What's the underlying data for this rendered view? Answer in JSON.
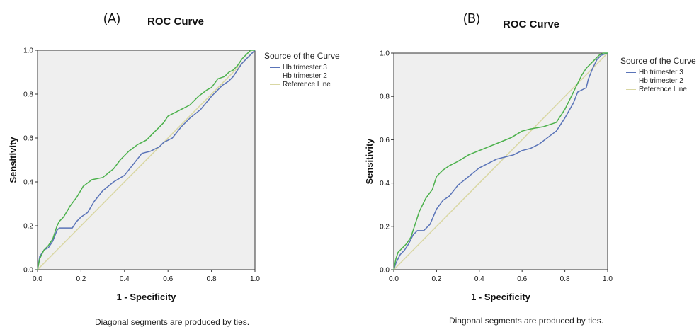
{
  "panels": [
    {
      "panel_label": "(A)",
      "title": "ROC Curve",
      "xlabel": "1 - Specificity",
      "ylabel": "Sensitivity",
      "footnote": "Diagonal segments are produced by ties.",
      "legend": {
        "title": "Source of the Curve",
        "items": [
          "Hb trimester 3",
          "Hb trimester 2",
          "Reference Line"
        ]
      }
    },
    {
      "panel_label": "(B)",
      "title": "ROC Curve",
      "xlabel": "1 - Specificity",
      "ylabel": "Sensitivity",
      "footnote": "Diagonal segments are produced by ties.",
      "legend": {
        "title": "Source of the Curve",
        "items": [
          "Hb trimester 3",
          "Hb trimester 2",
          "Reference Line"
        ]
      }
    }
  ],
  "colors": {
    "hb_trimester_3": "#5a74b8",
    "hb_trimester_2": "#4cb14c",
    "reference_line": "#d9d7a3",
    "plot_background": "#efefef"
  },
  "chart_data": [
    {
      "type": "line",
      "title": "ROC Curve",
      "xlabel": "1 - Specificity",
      "ylabel": "Sensitivity",
      "xlim": [
        0,
        1
      ],
      "ylim": [
        0,
        1
      ],
      "xticks": [
        "0.0",
        "0.2",
        "0.4",
        "0.6",
        "0.8",
        "1.0"
      ],
      "yticks": [
        "0.0",
        "0.2",
        "0.4",
        "0.6",
        "0.8",
        "1.0"
      ],
      "grid": false,
      "legend_position": "right",
      "series": [
        {
          "name": "Hb trimester 3",
          "x": [
            0,
            0.01,
            0.03,
            0.05,
            0.07,
            0.09,
            0.1,
            0.12,
            0.16,
            0.18,
            0.2,
            0.23,
            0.26,
            0.3,
            0.35,
            0.4,
            0.44,
            0.48,
            0.52,
            0.56,
            0.58,
            0.62,
            0.66,
            0.7,
            0.75,
            0.8,
            0.85,
            0.88,
            0.9,
            0.92,
            0.94,
            0.96,
            0.98,
            1.0
          ],
          "y": [
            0,
            0.06,
            0.09,
            0.1,
            0.13,
            0.18,
            0.19,
            0.19,
            0.19,
            0.22,
            0.24,
            0.26,
            0.31,
            0.36,
            0.4,
            0.43,
            0.48,
            0.53,
            0.54,
            0.56,
            0.58,
            0.6,
            0.65,
            0.69,
            0.73,
            0.79,
            0.84,
            0.86,
            0.88,
            0.91,
            0.94,
            0.96,
            0.98,
            1.0
          ]
        },
        {
          "name": "Hb trimester 2",
          "x": [
            0,
            0.01,
            0.03,
            0.05,
            0.07,
            0.09,
            0.1,
            0.12,
            0.15,
            0.18,
            0.21,
            0.25,
            0.3,
            0.35,
            0.38,
            0.42,
            0.46,
            0.5,
            0.54,
            0.58,
            0.6,
            0.64,
            0.7,
            0.74,
            0.78,
            0.8,
            0.83,
            0.86,
            0.88,
            0.9,
            0.92,
            0.94,
            0.96,
            0.98,
            1.0
          ],
          "y": [
            0,
            0.05,
            0.09,
            0.11,
            0.14,
            0.2,
            0.22,
            0.24,
            0.29,
            0.33,
            0.38,
            0.41,
            0.42,
            0.46,
            0.5,
            0.54,
            0.57,
            0.59,
            0.63,
            0.67,
            0.7,
            0.72,
            0.75,
            0.79,
            0.82,
            0.83,
            0.87,
            0.88,
            0.9,
            0.91,
            0.93,
            0.96,
            0.98,
            1.0,
            1.0
          ]
        },
        {
          "name": "Reference Line",
          "x": [
            0,
            1
          ],
          "y": [
            0,
            1
          ]
        }
      ]
    },
    {
      "type": "line",
      "title": "ROC Curve",
      "xlabel": "1 - Specificity",
      "ylabel": "Sensitivity",
      "xlim": [
        0,
        1
      ],
      "ylim": [
        0,
        1
      ],
      "xticks": [
        "0.0",
        "0.2",
        "0.4",
        "0.6",
        "0.8",
        "1.0"
      ],
      "yticks": [
        "0.0",
        "0.2",
        "0.4",
        "0.6",
        "0.8",
        "1.0"
      ],
      "grid": false,
      "legend_position": "right",
      "series": [
        {
          "name": "Hb trimester 3",
          "x": [
            0,
            0.01,
            0.02,
            0.03,
            0.05,
            0.07,
            0.09,
            0.11,
            0.14,
            0.17,
            0.2,
            0.23,
            0.26,
            0.3,
            0.35,
            0.4,
            0.44,
            0.48,
            0.52,
            0.56,
            0.6,
            0.64,
            0.68,
            0.72,
            0.76,
            0.8,
            0.84,
            0.86,
            0.88,
            0.9,
            0.91,
            0.93,
            0.95,
            0.97,
            1.0
          ],
          "y": [
            0,
            0.03,
            0.05,
            0.07,
            0.09,
            0.12,
            0.16,
            0.18,
            0.18,
            0.21,
            0.28,
            0.32,
            0.34,
            0.39,
            0.43,
            0.47,
            0.49,
            0.51,
            0.52,
            0.53,
            0.55,
            0.56,
            0.58,
            0.61,
            0.64,
            0.7,
            0.77,
            0.82,
            0.83,
            0.84,
            0.88,
            0.93,
            0.97,
            0.99,
            1.0
          ]
        },
        {
          "name": "Hb trimester 2",
          "x": [
            0,
            0.01,
            0.02,
            0.04,
            0.06,
            0.08,
            0.1,
            0.12,
            0.15,
            0.18,
            0.2,
            0.23,
            0.26,
            0.3,
            0.35,
            0.4,
            0.45,
            0.5,
            0.55,
            0.6,
            0.64,
            0.7,
            0.76,
            0.8,
            0.83,
            0.86,
            0.88,
            0.9,
            0.92,
            0.94,
            0.96,
            0.98,
            1.0
          ],
          "y": [
            0,
            0.05,
            0.08,
            0.1,
            0.12,
            0.15,
            0.21,
            0.27,
            0.33,
            0.37,
            0.43,
            0.46,
            0.48,
            0.5,
            0.53,
            0.55,
            0.57,
            0.59,
            0.61,
            0.64,
            0.65,
            0.66,
            0.68,
            0.74,
            0.8,
            0.86,
            0.9,
            0.93,
            0.95,
            0.97,
            0.99,
            1.0,
            1.0
          ]
        },
        {
          "name": "Reference Line",
          "x": [
            0,
            1
          ],
          "y": [
            0,
            1
          ]
        }
      ]
    }
  ]
}
